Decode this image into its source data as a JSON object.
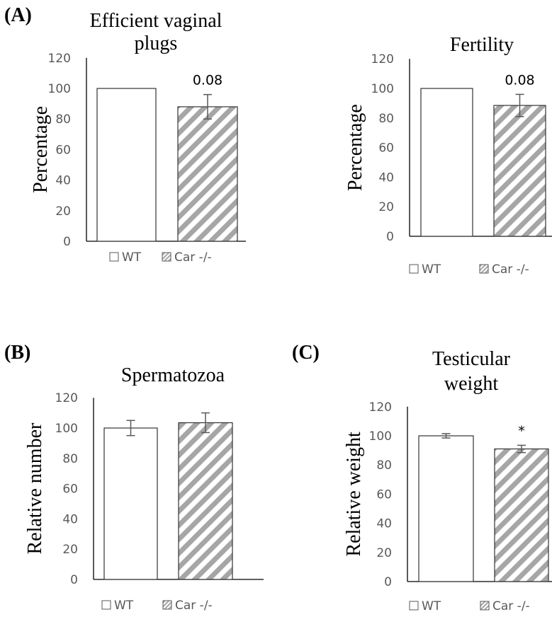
{
  "colors": {
    "wt_fill": "#ffffff",
    "bar_stroke": "#333333",
    "hatch": "#a6a6a6",
    "axis": "#000000",
    "error_bar": "#595959"
  },
  "panel_labels": [
    "(A)",
    "(B)",
    "(C)"
  ],
  "chart_data": [
    {
      "type": "bar",
      "title_lines": [
        "Efficient vaginal",
        "plugs"
      ],
      "ylabel": "Percentage",
      "ylim": [
        0,
        120
      ],
      "yticks": [
        "0",
        "20",
        "40",
        "60",
        "80",
        "100",
        "120"
      ],
      "series": [
        {
          "name": "WT",
          "value": 100,
          "error": 0
        },
        {
          "name": "Car -/-",
          "value": 88,
          "error": 8,
          "annotation": "0.08"
        }
      ],
      "legend": [
        "WT",
        "Car -/-"
      ]
    },
    {
      "type": "bar",
      "title_lines": [
        "Fertility"
      ],
      "ylabel": "Percentage",
      "ylim": [
        0,
        120
      ],
      "yticks": [
        "0",
        "20",
        "40",
        "60",
        "80",
        "100",
        "120"
      ],
      "series": [
        {
          "name": "WT",
          "value": 100,
          "error": 0
        },
        {
          "name": "Car -/-",
          "value": 88.5,
          "error": 7.5,
          "annotation": "0.08"
        }
      ],
      "legend": [
        "WT",
        "Car -/-"
      ]
    },
    {
      "type": "bar",
      "title_lines": [
        "Spermatozoa"
      ],
      "ylabel": "Relative number",
      "ylim": [
        0,
        120
      ],
      "yticks": [
        "0",
        "20",
        "40",
        "60",
        "80",
        "100",
        "120"
      ],
      "series": [
        {
          "name": "WT",
          "value": 100,
          "error": 5
        },
        {
          "name": "Car -/-",
          "value": 103.5,
          "error": 6.5
        }
      ],
      "legend": [
        "WT",
        "Car -/-"
      ]
    },
    {
      "type": "bar",
      "title_lines": [
        "Testicular",
        "weight"
      ],
      "ylabel": "Relative weight",
      "ylim": [
        0,
        120
      ],
      "yticks": [
        "0",
        "20",
        "40",
        "60",
        "80",
        "100",
        "120"
      ],
      "series": [
        {
          "name": "WT",
          "value": 100,
          "error": 1.5
        },
        {
          "name": "Car -/-",
          "value": 91,
          "error": 2.5,
          "annotation": "*"
        }
      ],
      "legend": [
        "WT",
        "Car -/-"
      ]
    }
  ]
}
